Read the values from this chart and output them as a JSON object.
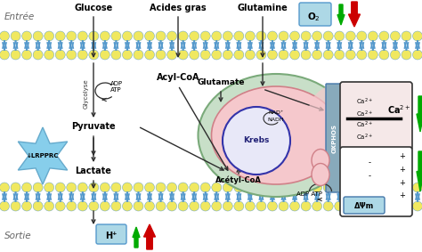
{
  "bg_color": "#ffffff",
  "labels": {
    "entree": "Entrée",
    "sortie": "Sortie",
    "glucose": "Glucose",
    "acides_gras": "Acides gras",
    "glutamine": "Glutamine",
    "pyruvate": "Pyruvate",
    "acyl_coa": "Acyl-CoA",
    "lactate": "Lactate",
    "lrpprc": "↓LRPPRC",
    "glutamate": "Glutamate",
    "krebs": "Krebs",
    "acetyl_coa": "Acétyl-CoA",
    "oxphos": "OXPHOS",
    "adp_atp": "ADP ATP",
    "delta_psi": "ΔΨm",
    "h_plus": "H⁺",
    "glycolyse": "Glycolyse",
    "adp": "ADP",
    "atp": "ATP",
    "nad_plus": "NAD⁺",
    "nadh": "NADH"
  },
  "colors": {
    "arrow_main": "#2d2d2d",
    "arrow_green": "#00aa00",
    "arrow_red": "#cc0000",
    "arrow_gray": "#555555",
    "mito_outer_fill": "#c8dfc8",
    "mito_outer_edge": "#7aaa7a",
    "mito_inner_fill": "#f5c8cc",
    "mito_inner_edge": "#d08088",
    "krebs_fill": "#e8e8f8",
    "krebs_edge": "#3333aa",
    "lrpprc_star": "#87ceeb",
    "lrpprc_star_edge": "#66aacc",
    "oxphos_fill": "#88aabb",
    "oxphos_edge": "#4477aa",
    "ca_box_edge": "#333333",
    "dpsi_box_edge": "#333333",
    "dpsi_fill": "#add8e6",
    "h_box_fill": "#add8e6",
    "h_box_edge": "#5599cc",
    "o2_box_fill": "#add8e6",
    "o2_box_edge": "#5599cc",
    "membrane_yellow": "#f0e860",
    "membrane_blue": "#5599cc",
    "text_gray": "#666666"
  }
}
